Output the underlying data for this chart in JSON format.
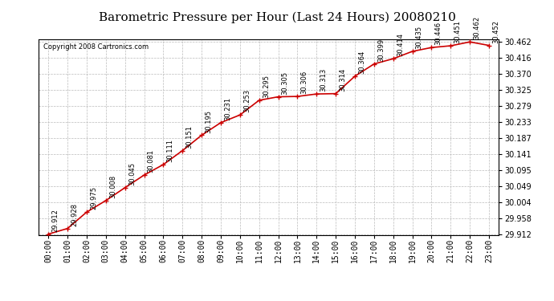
{
  "title": "Barometric Pressure per Hour (Last 24 Hours) 20080210",
  "copyright": "Copyright 2008 Cartronics.com",
  "hours": [
    "00:00",
    "01:00",
    "02:00",
    "03:00",
    "04:00",
    "05:00",
    "06:00",
    "07:00",
    "08:00",
    "09:00",
    "10:00",
    "11:00",
    "12:00",
    "13:00",
    "14:00",
    "15:00",
    "16:00",
    "17:00",
    "18:00",
    "19:00",
    "20:00",
    "21:00",
    "22:00",
    "23:00"
  ],
  "values": [
    29.912,
    29.928,
    29.975,
    30.008,
    30.045,
    30.081,
    30.111,
    30.151,
    30.195,
    30.231,
    30.253,
    30.295,
    30.305,
    30.306,
    30.313,
    30.314,
    30.364,
    30.399,
    30.414,
    30.435,
    30.446,
    30.451,
    30.462,
    30.452
  ],
  "line_color": "#cc0000",
  "marker_color": "#cc0000",
  "bg_color": "#ffffff",
  "grid_color": "#bbbbbb",
  "ylim_min": 29.912,
  "ylim_max": 30.462,
  "yticks": [
    29.912,
    29.958,
    30.004,
    30.049,
    30.095,
    30.141,
    30.187,
    30.233,
    30.279,
    30.325,
    30.37,
    30.416,
    30.462
  ],
  "title_fontsize": 11,
  "copyright_fontsize": 6,
  "annotation_fontsize": 6,
  "tick_fontsize": 7
}
